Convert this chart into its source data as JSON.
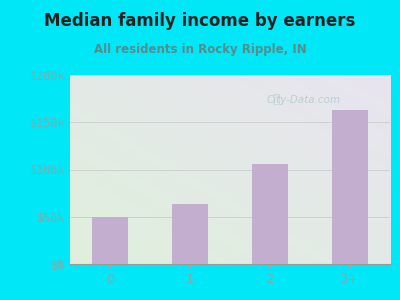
{
  "title": "Median family income by earners",
  "subtitle": "All residents in Rocky Ripple, IN",
  "categories": [
    "0",
    "1",
    "2",
    "3+"
  ],
  "values": [
    50000,
    63000,
    106000,
    163000
  ],
  "bar_color": "#c4aed0",
  "ylim": [
    0,
    200000
  ],
  "yticks": [
    0,
    50000,
    100000,
    150000,
    200000
  ],
  "ytick_labels": [
    "$0",
    "$50k",
    "$100k",
    "$150k",
    "$200k"
  ],
  "bg_outer": "#00e8f8",
  "title_color": "#222222",
  "subtitle_color": "#5a8a8a",
  "ytick_color": "#7aadad",
  "xtick_color": "#7aadad",
  "grid_color": "#cccccc",
  "watermark": "City-Data.com",
  "bg_gradient_topleft": "#dff0dc",
  "bg_gradient_bottomright": "#e8e4f0"
}
